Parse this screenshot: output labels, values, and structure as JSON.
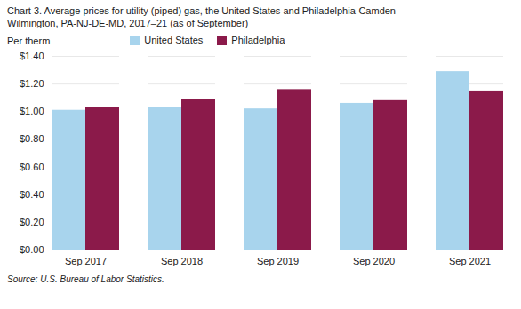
{
  "chart_data": {
    "type": "bar",
    "title": "Chart 3. Average prices for utility (piped) gas, the United States and Philadelphia-Camden-\nWilmington, PA-NJ-DE-MD, 2017–21 (as of September)",
    "ylabel": "Per therm",
    "annotations": [
      "Source: U.S. Bureau of Labor Statistics."
    ],
    "categories": [
      "Sep 2017",
      "Sep 2018",
      "Sep 2019",
      "Sep 2020",
      "Sep 2021"
    ],
    "series": [
      {
        "name": "United States",
        "color": "#a8d4ed",
        "values": [
          1.01,
          1.03,
          1.02,
          1.06,
          1.29
        ]
      },
      {
        "name": "Philadelphia",
        "color": "#8b1a4a",
        "values": [
          1.03,
          1.09,
          1.16,
          1.08,
          1.15
        ]
      }
    ],
    "ylim": [
      0.0,
      1.4
    ],
    "yticks": [
      {
        "value": 0.0,
        "label": "$0.00"
      },
      {
        "value": 0.2,
        "label": "$0.20"
      },
      {
        "value": 0.4,
        "label": "$0.40"
      },
      {
        "value": 0.6,
        "label": "$0.60"
      },
      {
        "value": 0.8,
        "label": "$0.80"
      },
      {
        "value": 1.0,
        "label": "$1.00"
      },
      {
        "value": 1.2,
        "label": "$1.20"
      },
      {
        "value": 1.4,
        "label": "$1.40"
      }
    ],
    "grid": true,
    "legend": "top"
  }
}
